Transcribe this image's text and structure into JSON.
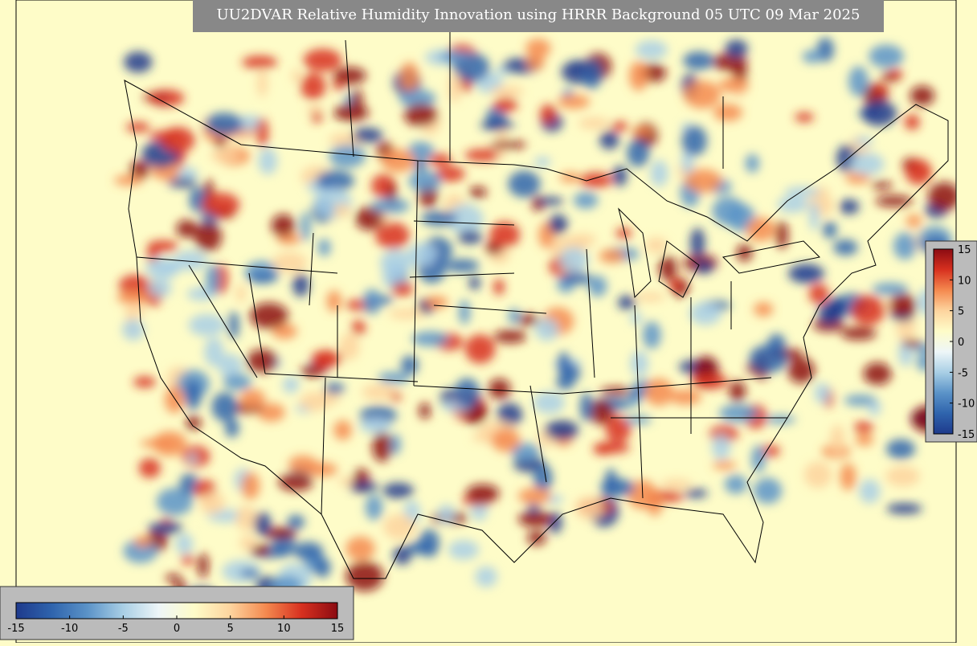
{
  "title": "UU2DVAR Relative Humidity Innovation using HRRR Background 05 UTC 09 Mar 2025",
  "colormap": [
    "#1e3a8c",
    "#2f64ad",
    "#5b93c8",
    "#a9cfe5",
    "#eef6f8",
    "#fefcc8",
    "#fdd49e",
    "#f4894f",
    "#d7301f",
    "#8b0b12"
  ],
  "colorbars": [
    {
      "orientation": "horizontal",
      "range": [
        -15,
        15
      ],
      "ticks": [
        -15,
        -10,
        -5,
        0,
        5,
        10,
        15
      ]
    },
    {
      "orientation": "vertical",
      "range": [
        -15,
        15
      ],
      "ticks": [
        15,
        10,
        5,
        0,
        -5,
        -10,
        -15
      ]
    }
  ]
}
